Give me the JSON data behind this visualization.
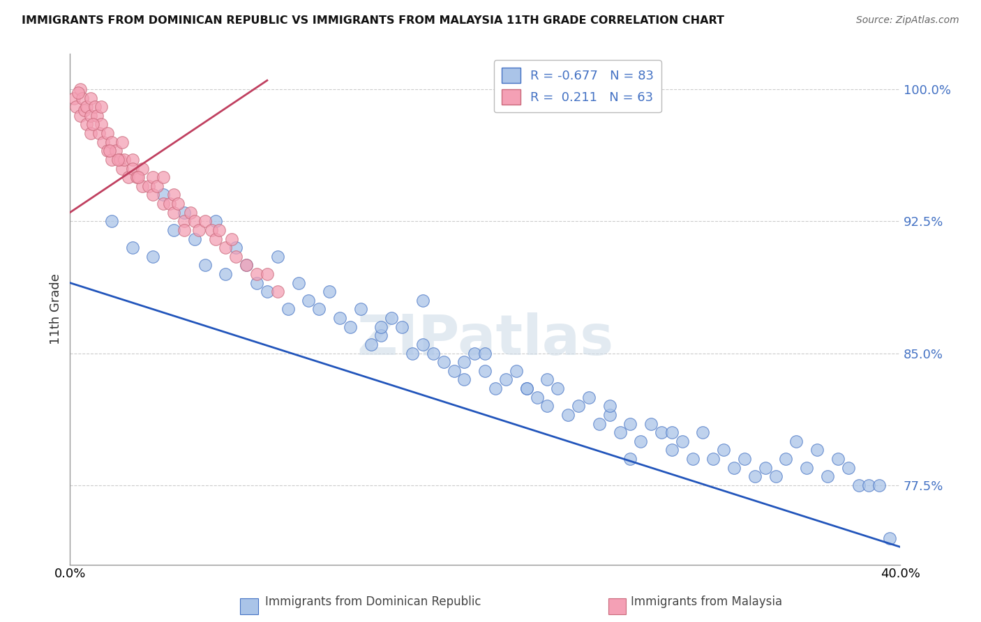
{
  "title": "IMMIGRANTS FROM DOMINICAN REPUBLIC VS IMMIGRANTS FROM MALAYSIA 11TH GRADE CORRELATION CHART",
  "source": "Source: ZipAtlas.com",
  "ylabel": "11th Grade",
  "xlim": [
    0.0,
    40.0
  ],
  "ylim": [
    73.0,
    102.0
  ],
  "yticks": [
    77.5,
    85.0,
    92.5,
    100.0
  ],
  "ytick_labels": [
    "77.5%",
    "85.0%",
    "92.5%",
    "100.0%"
  ],
  "xtick_labels": [
    "0.0%",
    "40.0%"
  ],
  "legend_r1_val": "-0.677",
  "legend_n1_val": "83",
  "legend_r2_val": "0.211",
  "legend_n2_val": "63",
  "blue_fill": "#aac4e8",
  "pink_fill": "#f4a0b5",
  "blue_edge": "#4472c4",
  "pink_edge": "#c9687a",
  "blue_line_color": "#2255bb",
  "pink_line_color": "#c04060",
  "watermark": "ZIPatlas",
  "blue_line_x0": 0.0,
  "blue_line_y0": 89.0,
  "blue_line_x1": 40.0,
  "blue_line_y1": 74.0,
  "pink_line_x0": 0.0,
  "pink_line_y0": 93.0,
  "pink_line_x1": 9.5,
  "pink_line_y1": 100.5,
  "blue_scatter_x": [
    2.0,
    3.0,
    4.0,
    4.5,
    5.0,
    5.5,
    6.0,
    6.5,
    7.0,
    7.5,
    8.0,
    8.5,
    9.0,
    9.5,
    10.0,
    10.5,
    11.0,
    11.5,
    12.0,
    12.5,
    13.0,
    13.5,
    14.0,
    14.5,
    15.0,
    15.5,
    16.0,
    16.5,
    17.0,
    17.5,
    18.0,
    18.5,
    19.0,
    19.5,
    20.0,
    20.5,
    21.0,
    21.5,
    22.0,
    22.5,
    23.0,
    23.5,
    24.0,
    24.5,
    25.0,
    25.5,
    26.0,
    26.5,
    27.0,
    27.5,
    28.0,
    28.5,
    29.0,
    29.5,
    30.0,
    30.5,
    31.0,
    31.5,
    32.0,
    32.5,
    33.0,
    33.5,
    34.0,
    34.5,
    35.0,
    35.5,
    36.0,
    36.5,
    37.0,
    37.5,
    38.0,
    38.5,
    39.0,
    39.5,
    17.0,
    20.0,
    23.0,
    26.0,
    29.0,
    15.0,
    19.0,
    22.0,
    27.0
  ],
  "blue_scatter_y": [
    92.5,
    91.0,
    90.5,
    94.0,
    92.0,
    93.0,
    91.5,
    90.0,
    92.5,
    89.5,
    91.0,
    90.0,
    89.0,
    88.5,
    90.5,
    87.5,
    89.0,
    88.0,
    87.5,
    88.5,
    87.0,
    86.5,
    87.5,
    85.5,
    86.0,
    87.0,
    86.5,
    85.0,
    85.5,
    85.0,
    84.5,
    84.0,
    83.5,
    85.0,
    84.0,
    83.0,
    83.5,
    84.0,
    83.0,
    82.5,
    82.0,
    83.0,
    81.5,
    82.0,
    82.5,
    81.0,
    81.5,
    80.5,
    81.0,
    80.0,
    81.0,
    80.5,
    79.5,
    80.0,
    79.0,
    80.5,
    79.0,
    79.5,
    78.5,
    79.0,
    78.0,
    78.5,
    78.0,
    79.0,
    80.0,
    78.5,
    79.5,
    78.0,
    79.0,
    78.5,
    77.5,
    77.5,
    77.5,
    74.5,
    88.0,
    85.0,
    83.5,
    82.0,
    80.5,
    86.5,
    84.5,
    83.0,
    79.0
  ],
  "pink_scatter_x": [
    0.2,
    0.3,
    0.5,
    0.5,
    0.6,
    0.7,
    0.8,
    0.8,
    1.0,
    1.0,
    1.0,
    1.2,
    1.3,
    1.4,
    1.5,
    1.5,
    1.6,
    1.8,
    1.8,
    2.0,
    2.0,
    2.2,
    2.4,
    2.5,
    2.5,
    2.6,
    2.8,
    3.0,
    3.0,
    3.2,
    3.5,
    3.5,
    3.8,
    4.0,
    4.0,
    4.2,
    4.5,
    4.5,
    4.8,
    5.0,
    5.0,
    5.2,
    5.5,
    5.8,
    6.0,
    6.2,
    6.5,
    6.8,
    7.0,
    7.2,
    7.5,
    7.8,
    8.0,
    8.5,
    9.0,
    9.5,
    10.0,
    0.4,
    1.1,
    1.9,
    2.3,
    3.3,
    5.5
  ],
  "pink_scatter_y": [
    99.5,
    99.0,
    100.0,
    98.5,
    99.5,
    98.8,
    99.0,
    98.0,
    99.5,
    98.5,
    97.5,
    99.0,
    98.5,
    97.5,
    99.0,
    98.0,
    97.0,
    97.5,
    96.5,
    97.0,
    96.0,
    96.5,
    96.0,
    97.0,
    95.5,
    96.0,
    95.0,
    96.0,
    95.5,
    95.0,
    95.5,
    94.5,
    94.5,
    95.0,
    94.0,
    94.5,
    95.0,
    93.5,
    93.5,
    94.0,
    93.0,
    93.5,
    92.5,
    93.0,
    92.5,
    92.0,
    92.5,
    92.0,
    91.5,
    92.0,
    91.0,
    91.5,
    90.5,
    90.0,
    89.5,
    89.5,
    88.5,
    99.8,
    98.0,
    96.5,
    96.0,
    95.0,
    92.0
  ],
  "background_color": "#ffffff",
  "grid_color": "#cccccc"
}
